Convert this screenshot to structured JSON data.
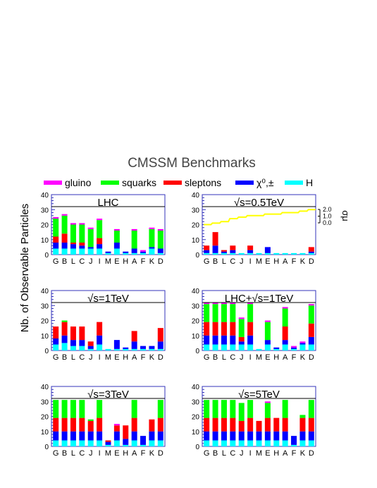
{
  "title": "CMSSM Benchmarks",
  "ylabel": "Nb. of Observable Particles",
  "legend": [
    {
      "label": "gluino",
      "color": "#ff00ff"
    },
    {
      "label": "squarks",
      "color": "#00ff00"
    },
    {
      "label": "sleptons",
      "color": "#ff0000"
    },
    {
      "label": "χ⁰,±",
      "color": "#0000ff"
    },
    {
      "label": "H",
      "color": "#00ffff"
    }
  ],
  "colors": {
    "gluino": "#ff00ff",
    "squarks": "#00ff00",
    "sleptons": "#ff0000",
    "chargino": "#0000ff",
    "higgs": "#00ffff",
    "frame": "#3333bb",
    "sigma": "#ffff00"
  },
  "chart_data": [
    {
      "type": "bar",
      "stacked": true,
      "title": "LHC",
      "ylim": [
        0,
        40
      ],
      "yticks": [
        0,
        10,
        20,
        30,
        40
      ],
      "reference_line": 32,
      "categories": [
        "G",
        "B",
        "L",
        "C",
        "J",
        "I",
        "M",
        "E",
        "H",
        "A",
        "F",
        "K",
        "D"
      ],
      "series": [
        {
          "name": "H",
          "values": [
            4,
            4,
            4,
            4,
            4,
            4,
            1,
            4,
            1,
            1,
            1,
            4,
            1
          ]
        },
        {
          "name": "χ⁰,±",
          "values": [
            4,
            4,
            3,
            2,
            1,
            3,
            1,
            4,
            1,
            3,
            1,
            1,
            3
          ]
        },
        {
          "name": "sleptons",
          "values": [
            4,
            6,
            1,
            2,
            0,
            4,
            0,
            0,
            0,
            0,
            0,
            0,
            0
          ]
        },
        {
          "name": "squarks",
          "values": [
            12,
            12,
            12,
            12,
            12,
            12,
            0,
            8,
            0,
            12,
            0,
            12,
            12
          ]
        },
        {
          "name": "gluino",
          "values": [
            1,
            1,
            1,
            1,
            1,
            1,
            0,
            1,
            0,
            1,
            1,
            1,
            1
          ]
        }
      ]
    },
    {
      "type": "bar",
      "stacked": true,
      "title": "√s=0.5TeV",
      "ylim": [
        0,
        40
      ],
      "yticks": [
        0,
        10,
        20,
        30,
        40
      ],
      "reference_line": 32,
      "categories": [
        "G",
        "B",
        "L",
        "C",
        "J",
        "I",
        "M",
        "E",
        "H",
        "A",
        "F",
        "K",
        "D"
      ],
      "series": [
        {
          "name": "H",
          "values": [
            1,
            1,
            1,
            1,
            1,
            1,
            1,
            1,
            1,
            1,
            1,
            1,
            1
          ]
        },
        {
          "name": "χ⁰,±",
          "values": [
            2,
            5,
            1,
            2,
            0,
            2,
            0,
            4,
            0,
            0,
            0,
            0,
            1
          ]
        },
        {
          "name": "sleptons",
          "values": [
            3,
            9,
            1,
            3,
            0,
            3,
            0,
            0,
            0,
            0,
            0,
            0,
            3
          ]
        },
        {
          "name": "squarks",
          "values": [
            0,
            0,
            0,
            0,
            0,
            0,
            0,
            0,
            0,
            0,
            0,
            0,
            0
          ]
        },
        {
          "name": "gluino",
          "values": [
            0,
            0,
            0,
            0,
            0,
            0,
            0,
            0,
            0,
            0,
            0,
            0,
            0
          ]
        }
      ],
      "secondary_axis": {
        "label": "σμ",
        "ticks": [
          "0.0",
          "1.0",
          "2.0"
        ]
      },
      "sigma_line": {
        "color": "#ffff00",
        "values": [
          20,
          21,
          22,
          24,
          25,
          26,
          26,
          27,
          27,
          28,
          28,
          29,
          30
        ]
      }
    },
    {
      "type": "bar",
      "stacked": true,
      "title": "√s=1TeV",
      "ylim": [
        0,
        40
      ],
      "yticks": [
        0,
        10,
        20,
        30,
        40
      ],
      "reference_line": 32,
      "categories": [
        "G",
        "B",
        "L",
        "C",
        "J",
        "I",
        "M",
        "E",
        "H",
        "A",
        "F",
        "K",
        "D"
      ],
      "series": [
        {
          "name": "H",
          "values": [
            4,
            5,
            3,
            3,
            1,
            4,
            1,
            1,
            1,
            1,
            1,
            1,
            1
          ]
        },
        {
          "name": "χ⁰,±",
          "values": [
            4,
            5,
            4,
            4,
            2,
            6,
            0,
            6,
            1,
            5,
            2,
            2,
            5
          ]
        },
        {
          "name": "sleptons",
          "values": [
            8,
            9,
            9,
            9,
            3,
            9,
            0,
            0,
            0,
            7,
            0,
            0,
            9
          ]
        },
        {
          "name": "squarks",
          "values": [
            0,
            1,
            0,
            0,
            0,
            0,
            0,
            0,
            0,
            0,
            0,
            0,
            0
          ]
        },
        {
          "name": "gluino",
          "values": [
            0,
            0,
            0,
            0,
            0,
            0,
            0,
            0,
            0,
            0,
            0,
            0,
            0
          ]
        }
      ]
    },
    {
      "type": "bar",
      "stacked": true,
      "title": "LHC+√s=1TeV",
      "ylim": [
        0,
        40
      ],
      "yticks": [
        0,
        10,
        20,
        30,
        40
      ],
      "reference_line": 32,
      "categories": [
        "G",
        "B",
        "L",
        "C",
        "J",
        "I",
        "M",
        "E",
        "H",
        "A",
        "F",
        "K",
        "D"
      ],
      "series": [
        {
          "name": "H",
          "values": [
            4,
            4,
            4,
            4,
            4,
            4,
            1,
            4,
            1,
            4,
            1,
            4,
            4
          ]
        },
        {
          "name": "χ⁰,±",
          "values": [
            6,
            6,
            6,
            6,
            2,
            6,
            0,
            3,
            1,
            3,
            1,
            1,
            5
          ]
        },
        {
          "name": "sleptons",
          "values": [
            9,
            9,
            9,
            9,
            3,
            9,
            0,
            0,
            0,
            9,
            0,
            0,
            9
          ]
        },
        {
          "name": "squarks",
          "values": [
            12,
            12,
            12,
            12,
            12,
            12,
            0,
            12,
            0,
            12,
            0,
            0,
            12
          ]
        },
        {
          "name": "gluino",
          "values": [
            1,
            1,
            1,
            1,
            1,
            1,
            0,
            1,
            0,
            1,
            1,
            1,
            1
          ]
        }
      ]
    },
    {
      "type": "bar",
      "stacked": true,
      "title": "√s=3TeV",
      "ylim": [
        0,
        40
      ],
      "yticks": [
        0,
        10,
        20,
        30,
        40
      ],
      "reference_line": 32,
      "categories": [
        "G",
        "B",
        "L",
        "C",
        "J",
        "I",
        "M",
        "E",
        "H",
        "A",
        "F",
        "K",
        "D"
      ],
      "series": [
        {
          "name": "H",
          "values": [
            4,
            4,
            4,
            4,
            4,
            4,
            1,
            4,
            1,
            4,
            1,
            4,
            4
          ]
        },
        {
          "name": "χ⁰,±",
          "values": [
            6,
            6,
            6,
            6,
            6,
            6,
            2,
            6,
            4,
            6,
            6,
            6,
            6
          ]
        },
        {
          "name": "sleptons",
          "values": [
            9,
            9,
            9,
            9,
            7,
            9,
            1,
            4,
            9,
            9,
            0,
            8,
            9
          ]
        },
        {
          "name": "squarks",
          "values": [
            12,
            12,
            12,
            12,
            1,
            12,
            0,
            0,
            0,
            12,
            0,
            0,
            12
          ]
        },
        {
          "name": "gluino",
          "values": [
            0,
            0,
            0,
            0,
            0,
            0,
            0,
            1,
            0,
            0,
            0,
            0,
            0
          ]
        }
      ]
    },
    {
      "type": "bar",
      "stacked": true,
      "title": "√s=5TeV",
      "ylim": [
        0,
        40
      ],
      "yticks": [
        0,
        10,
        20,
        30,
        40
      ],
      "reference_line": 32,
      "categories": [
        "G",
        "B",
        "L",
        "C",
        "J",
        "I",
        "M",
        "E",
        "H",
        "A",
        "F",
        "K",
        "D"
      ],
      "series": [
        {
          "name": "H",
          "values": [
            4,
            4,
            4,
            4,
            4,
            4,
            4,
            4,
            4,
            4,
            1,
            4,
            4
          ]
        },
        {
          "name": "χ⁰,±",
          "values": [
            6,
            6,
            6,
            6,
            6,
            6,
            6,
            6,
            6,
            6,
            6,
            6,
            6
          ]
        },
        {
          "name": "sleptons",
          "values": [
            9,
            9,
            9,
            9,
            7,
            9,
            7,
            9,
            9,
            9,
            0,
            9,
            9
          ]
        },
        {
          "name": "squarks",
          "values": [
            12,
            12,
            12,
            12,
            12,
            12,
            0,
            10,
            0,
            12,
            0,
            2,
            12
          ]
        },
        {
          "name": "gluino",
          "values": [
            0,
            0,
            0,
            0,
            0,
            0,
            0,
            1,
            0,
            0,
            0,
            0,
            0
          ]
        }
      ]
    }
  ]
}
